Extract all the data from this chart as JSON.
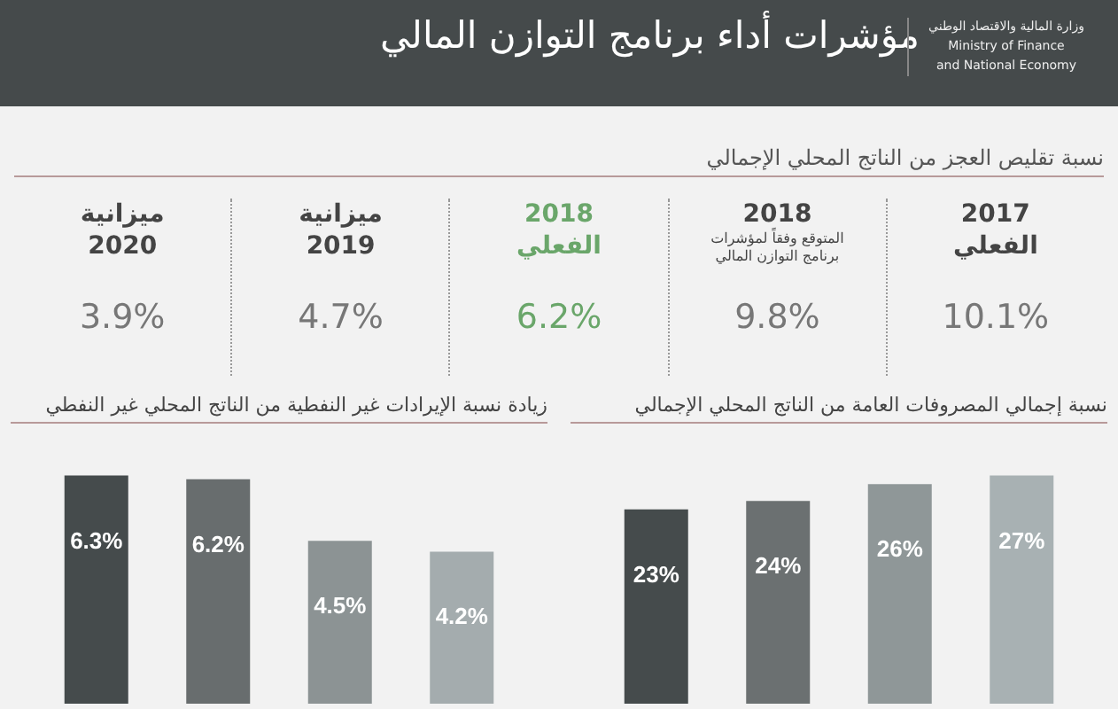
{
  "chart_data": [
    {
      "type": "other",
      "title": "مؤشرات أداء برنامج التوازن المالي",
      "subtitle": "نسبة تقليص العجز من الناتج المحلي الإجمالي",
      "annotations": [
        "وزارة المالية والاقتصاد الوطني",
        "Ministry of Finance\nand National Economy"
      ],
      "categories": [
        "ميزانية\n2020",
        "ميزانية\n2019",
        "2018\nالفعلي",
        "2018\nالمتوقع وفقاً لمؤشرات\nبرنامج التوازن المالي",
        "2017\nالفعلي"
      ],
      "values": [
        3.9,
        4.7,
        6.2,
        9.8,
        10.1
      ],
      "value_labels": [
        "3.9%",
        "4.7%",
        "6.2%",
        "9.8%",
        "10.1%"
      ],
      "colors": [
        "#777777",
        "#777777",
        "#6aa66a",
        "#777777",
        "#777777"
      ]
    },
    {
      "type": "bar",
      "title": "زيادة نسبة الإيرادات غير النفطية من الناتج المحلي غير النفطي",
      "categories": [
        null,
        null,
        null,
        null
      ],
      "values": [
        6.3,
        6.2,
        4.5,
        4.2
      ],
      "value_labels": [
        "6.3%",
        "6.2%",
        "4.5%",
        "4.2%"
      ],
      "colors": [
        "#454b4c",
        "#686d6e",
        "#8c9394",
        "#a4acae"
      ]
    },
    {
      "type": "bar",
      "title": "نسبة إجمالي المصروفات العامة من الناتج المحلي الإجمالي",
      "categories": [
        null,
        null,
        null,
        null
      ],
      "values": [
        23,
        24,
        26,
        27
      ],
      "value_labels": [
        "23%",
        "24%",
        "26%",
        "27%"
      ],
      "colors": [
        "#454b4c",
        "#6b7071",
        "#8f9798",
        "#a8b1b3"
      ]
    }
  ]
}
